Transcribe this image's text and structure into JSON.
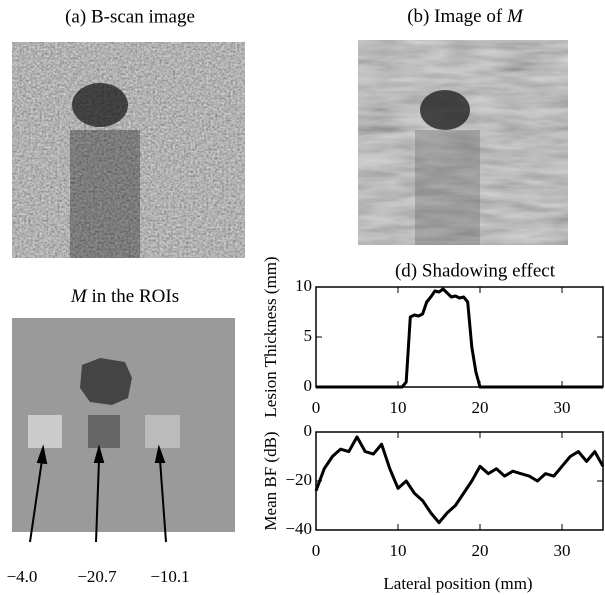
{
  "panel_a": {
    "title": "(a) B-scan image"
  },
  "panel_b": {
    "text": "(b) Image of",
    "symbol": "M"
  },
  "panel_c": {
    "symbol": "M",
    "text": "in the ROIs",
    "roi_labels": [
      "−4.0",
      "−20.7",
      "−10.1"
    ]
  },
  "chart_data": [
    {
      "type": "line",
      "title": "(d) Shadowing effect",
      "y_label": "Lesion Thickness (mm)",
      "xlim": [
        0,
        35
      ],
      "ylim": [
        0,
        10
      ],
      "xticks": [
        0,
        10,
        20,
        30
      ],
      "yticks": [
        0,
        5,
        10
      ],
      "series": [
        {
          "color": "#000000",
          "x": [
            0,
            5,
            10,
            10.5,
            11,
            11.5,
            12,
            12.5,
            13,
            13.5,
            14,
            14.5,
            15,
            15.5,
            16,
            16.5,
            17,
            17.5,
            18,
            18.5,
            19,
            19.5,
            20,
            25,
            30,
            35
          ],
          "values": [
            0,
            0,
            0,
            0,
            0.5,
            7,
            7.2,
            7.1,
            7.3,
            8.5,
            9,
            9.6,
            9.5,
            9.8,
            9.4,
            9,
            9.1,
            8.9,
            9,
            8.5,
            4,
            1.5,
            0,
            0,
            0,
            0
          ]
        }
      ]
    },
    {
      "type": "line",
      "y_label": "Mean BF (dB)",
      "x_label": "Lateral position (mm)",
      "xlim": [
        0,
        35
      ],
      "ylim": [
        -40,
        0
      ],
      "xticks": [
        0,
        10,
        20,
        30
      ],
      "yticks": [
        0,
        {
          "value": -20,
          "label": "−20"
        },
        {
          "value": -40,
          "label": "−40"
        }
      ],
      "series": [
        {
          "color": "#000000",
          "x": [
            0,
            1,
            2,
            3,
            4,
            5,
            6,
            7,
            8,
            9,
            10,
            11,
            12,
            13,
            14,
            15,
            16,
            17,
            18,
            19,
            20,
            21,
            22,
            23,
            24,
            25,
            26,
            27,
            28,
            29,
            30,
            31,
            32,
            33,
            34,
            35
          ],
          "values": [
            -24,
            -15,
            -10,
            -7,
            -8,
            -2,
            -8,
            -9,
            -5,
            -15,
            -23,
            -20,
            -25,
            -28,
            -33,
            -37,
            -33,
            -30,
            -25,
            -20,
            -14,
            -17,
            -15,
            -18,
            -16,
            -17,
            -18,
            -20,
            -17,
            -18,
            -14,
            -10,
            -8,
            -12,
            -8,
            -14
          ]
        }
      ]
    }
  ]
}
